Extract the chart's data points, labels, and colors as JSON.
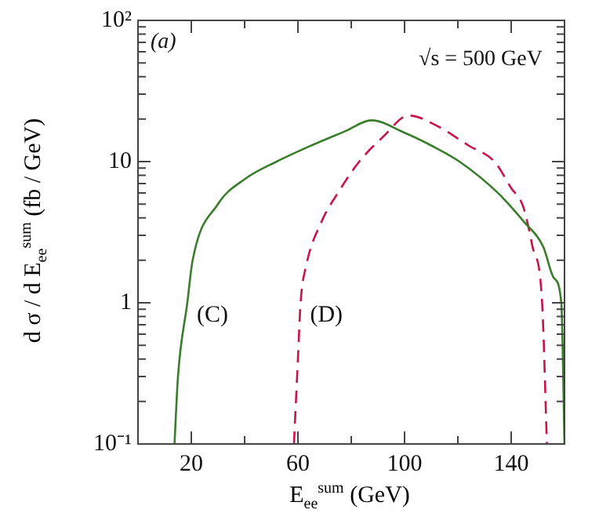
{
  "chart_data": {
    "type": "line",
    "xlabel": "E$_{ee}$$^{sum}$ (GeV)",
    "ylabel": "d σ / d E$_{ee}$$^{sum}$ (fb / GeV)",
    "log": "y",
    "grid": false,
    "legend": false,
    "marker": "none",
    "xlim": [
      0,
      160
    ],
    "xticks": [
      {
        "value": 0,
        "label": null
      },
      20,
      {
        "value": 40,
        "label": null
      },
      60,
      {
        "value": 80,
        "label": null
      },
      100,
      {
        "value": 120,
        "label": null
      },
      140,
      {
        "value": 160,
        "label": null
      }
    ],
    "ylim": [
      0.1,
      100
    ],
    "yticks": [
      {
        "value": 0.1,
        "label": "10⁻¹"
      },
      {
        "value": 0.2,
        "label": null
      },
      {
        "value": 0.3,
        "label": null
      },
      {
        "value": 0.4,
        "label": null
      },
      {
        "value": 0.5,
        "label": null
      },
      {
        "value": 0.6,
        "label": null
      },
      {
        "value": 0.7,
        "label": null
      },
      {
        "value": 0.8,
        "label": null
      },
      {
        "value": 0.9,
        "label": null
      },
      1,
      {
        "value": 2,
        "label": null
      },
      {
        "value": 3,
        "label": null
      },
      {
        "value": 4,
        "label": null
      },
      {
        "value": 5,
        "label": null
      },
      {
        "value": 6,
        "label": null
      },
      {
        "value": 7,
        "label": null
      },
      {
        "value": 8,
        "label": null
      },
      {
        "value": 9,
        "label": null
      },
      10,
      {
        "value": 20,
        "label": null
      },
      {
        "value": 30,
        "label": null
      },
      {
        "value": 40,
        "label": null
      },
      {
        "value": 50,
        "label": null
      },
      {
        "value": 60,
        "label": null
      },
      {
        "value": 70,
        "label": null
      },
      {
        "value": 80,
        "label": null
      },
      {
        "value": 90,
        "label": null
      },
      {
        "value": 100,
        "label": "10²"
      }
    ],
    "annotations": [
      "(a)",
      "√s = 500 GeV",
      {
        "text": "(C)",
        "x": 18.5,
        "y": 1
      },
      {
        "text": "(D)",
        "x": 61,
        "y": 1
      }
    ],
    "series": [
      {
        "color": "#3a7d2c",
        "line_style": "solid",
        "x": [
          13.7,
          15,
          18.5,
          20.5,
          30,
          40,
          52,
          65,
          78,
          87.5,
          100,
          110,
          120.6,
          135,
          144.5,
          152,
          156,
          158.8,
          160
        ],
        "values": [
          0.1,
          0.3,
          1,
          2,
          5,
          7.5,
          10,
          13,
          16.5,
          19.6,
          16,
          13,
          10,
          6,
          3.8,
          2.5,
          1.5,
          1,
          0.1
        ]
      },
      {
        "color": "#c8144a",
        "line_style": "dashed",
        "x": [
          58.5,
          60,
          61,
          63,
          69,
          75,
          83,
          92,
          101.5,
          112,
          124,
          133.7,
          140,
          144.5,
          148,
          151.6,
          153.4
        ],
        "values": [
          0.1,
          0.4,
          1,
          1.8,
          3.8,
          6,
          10,
          15,
          21.2,
          18,
          13,
          10,
          6.5,
          4.8,
          2.5,
          1,
          0.1
        ]
      }
    ]
  }
}
